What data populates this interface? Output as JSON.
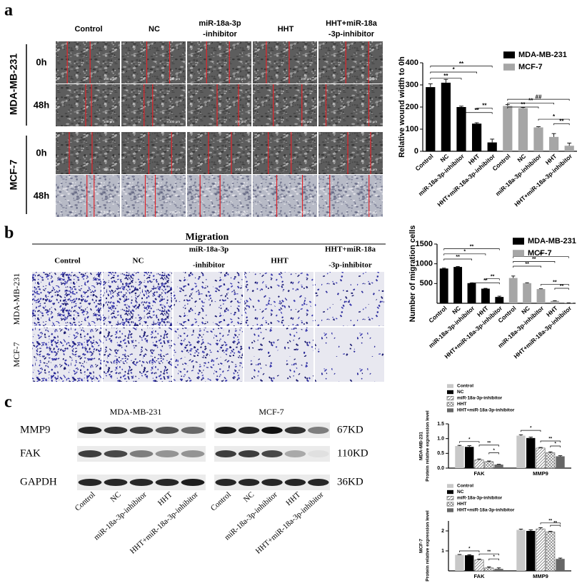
{
  "panel_a": {
    "label": "a",
    "columns": [
      [
        "Control"
      ],
      [
        "NC"
      ],
      [
        "miR-18a-3p",
        "-inhibitor"
      ],
      [
        "HHT"
      ],
      [
        "HHT+miR-18a",
        "-3p-inhibitor"
      ]
    ],
    "groups": [
      {
        "name": "MDA-MB-231",
        "times": [
          "0h",
          "48h"
        ]
      },
      {
        "name": "MCF-7",
        "times": [
          "0h",
          "48h"
        ]
      }
    ],
    "scale_bar": "100 μm"
  },
  "panel_b": {
    "label": "b",
    "title": "Migration",
    "columns": [
      [
        "Control"
      ],
      [
        "NC"
      ],
      [
        "miR-18a-3p",
        "-inhibitor"
      ],
      [
        "HHT"
      ],
      [
        "HHT+miR-18a",
        "-3p-inhibitor"
      ]
    ],
    "rows": [
      "MDA-MB-231",
      "MCF-7"
    ]
  },
  "panel_c": {
    "label": "c",
    "cell_lines": [
      "MDA-MB-231",
      "MCF-7"
    ],
    "proteins": [
      "MMP9",
      "FAK",
      "GAPDH"
    ],
    "sizes": [
      "67KD",
      "110KD",
      "36KD"
    ],
    "lanes": [
      "Control",
      "NC",
      "miR-18a-3p-inhibitor",
      "HHT",
      "HHT+miR-18a-3p-inhibitor"
    ]
  },
  "chart_data": [
    {
      "type": "bar",
      "ylabel": "Relative wound width to 0h",
      "categories": [
        "Control",
        "NC",
        "miR-18a-3p-inhibitor",
        "HHT",
        "HHT+miR-18a-3p-inhibitor",
        "Control",
        "NC",
        "miR-18a-3p-inhibitor",
        "HHT",
        "HHT+miR-18a-3p-inhibitor"
      ],
      "series": [
        {
          "name": "MDA-MB-231",
          "color": "#000000",
          "values": [
            290,
            310,
            200,
            125,
            40,
            null,
            null,
            null,
            null,
            null
          ],
          "errors": [
            15,
            15,
            4,
            4,
            15,
            null,
            null,
            null,
            null,
            null
          ]
        },
        {
          "name": "MCF-7",
          "color": "#a6a6a6",
          "values": [
            null,
            null,
            null,
            null,
            null,
            205,
            195,
            108,
            65,
            25
          ],
          "errors": [
            null,
            null,
            null,
            null,
            null,
            6,
            3,
            3,
            15,
            12
          ]
        }
      ],
      "ylim": [
        0,
        400
      ],
      "yticks": [
        0,
        100,
        200,
        300,
        400
      ],
      "legend": "top-right",
      "annotations": [
        "**",
        "*",
        "**",
        "**",
        "**",
        "##",
        "**",
        "**",
        "*",
        "**"
      ]
    },
    {
      "type": "bar",
      "ylabel": "Number of migration cells",
      "categories": [
        "Control",
        "NC",
        "miR-18a-3p-inhibitor",
        "HHT",
        "HHT+miR-18a-3p-inhibitor",
        "Control",
        "NC",
        "miR-18a-3p-inhibitor",
        "HHT",
        "HHT+miR-18a-3p-inhibitor"
      ],
      "series": [
        {
          "name": "MDA-MB-231",
          "color": "#000000",
          "values": [
            880,
            920,
            510,
            370,
            160,
            null,
            null,
            null,
            null,
            null
          ],
          "errors": [
            10,
            10,
            8,
            8,
            20,
            null,
            null,
            null,
            null,
            null
          ]
        },
        {
          "name": "MCF-7",
          "color": "#a6a6a6",
          "values": [
            null,
            null,
            null,
            null,
            null,
            640,
            510,
            360,
            60,
            10
          ],
          "errors": [
            null,
            null,
            null,
            null,
            null,
            50,
            10,
            8,
            5,
            3
          ]
        }
      ],
      "ylim": [
        0,
        1500
      ],
      "yticks": [
        500,
        1000,
        1500
      ],
      "legend": "top-right",
      "annotations": [
        "**",
        "*",
        "**",
        "**",
        "**",
        "**",
        "**",
        "**",
        "**",
        "**"
      ]
    },
    {
      "type": "bar",
      "ylabel": [
        "MDA-MB-231",
        "Protein relative expression level"
      ],
      "categories": [
        "FAK",
        "MMP9"
      ],
      "series": [
        {
          "name": "Control",
          "color": "#c8c8c8",
          "values": [
            0.75,
            1.1
          ],
          "errors": [
            0.02,
            0.03
          ]
        },
        {
          "name": "NC",
          "color": "#000000",
          "values": [
            0.72,
            1.02
          ],
          "errors": [
            0.04,
            0.03
          ]
        },
        {
          "name": "miR-18a-3p-inhibitor",
          "color": "#555555",
          "pattern": "diagonal",
          "values": [
            0.28,
            0.68
          ],
          "errors": [
            0.03,
            0.02
          ]
        },
        {
          "name": "HHT",
          "color": "#555555",
          "pattern": "cross",
          "values": [
            0.22,
            0.52
          ],
          "errors": [
            0.02,
            0.03
          ]
        },
        {
          "name": "HHT+miR-18a-3p-inhibitor",
          "color": "#666666",
          "values": [
            0.12,
            0.4
          ],
          "errors": [
            0.01,
            0.02
          ]
        }
      ],
      "ylim": [
        0,
        1.5
      ],
      "yticks": [
        {
          "value": 0,
          "label": "0.0"
        },
        0.5,
        {
          "value": 1,
          "label": "1.0"
        },
        1.5
      ],
      "legend": "top-left",
      "annotations": [
        "*",
        "**",
        "*",
        "*",
        "**",
        "*"
      ]
    },
    {
      "type": "bar",
      "ylabel": [
        "MCF-7",
        "Protein  relative expression level"
      ],
      "categories": [
        "FAK",
        "MMP9"
      ],
      "series": [
        {
          "name": "Control",
          "color": "#c8c8c8",
          "values": [
            0.8,
            2.05
          ],
          "errors": [
            0.02,
            0.04
          ]
        },
        {
          "name": "NC",
          "color": "#000000",
          "values": [
            0.78,
            2.0
          ],
          "errors": [
            0.03,
            0.05
          ]
        },
        {
          "name": "miR-18a-3p-inhibitor",
          "color": "#555555",
          "pattern": "diagonal",
          "values": [
            0.55,
            2.1
          ],
          "errors": [
            0.04,
            0.06
          ]
        },
        {
          "name": "HHT",
          "color": "#555555",
          "pattern": "cross",
          "values": [
            0.15,
            1.95
          ],
          "errors": [
            0.05,
            0.03
          ]
        },
        {
          "name": "HHT+miR-18a-3p-inhibitor",
          "color": "#666666",
          "values": [
            0.1,
            0.6
          ],
          "errors": [
            0.05,
            0.04
          ]
        }
      ],
      "ylim": [
        0,
        2.5
      ],
      "yticks": [
        1,
        2
      ],
      "legend": "top-left",
      "annotations": [
        "*",
        "**",
        "*",
        "**",
        "**"
      ]
    }
  ]
}
